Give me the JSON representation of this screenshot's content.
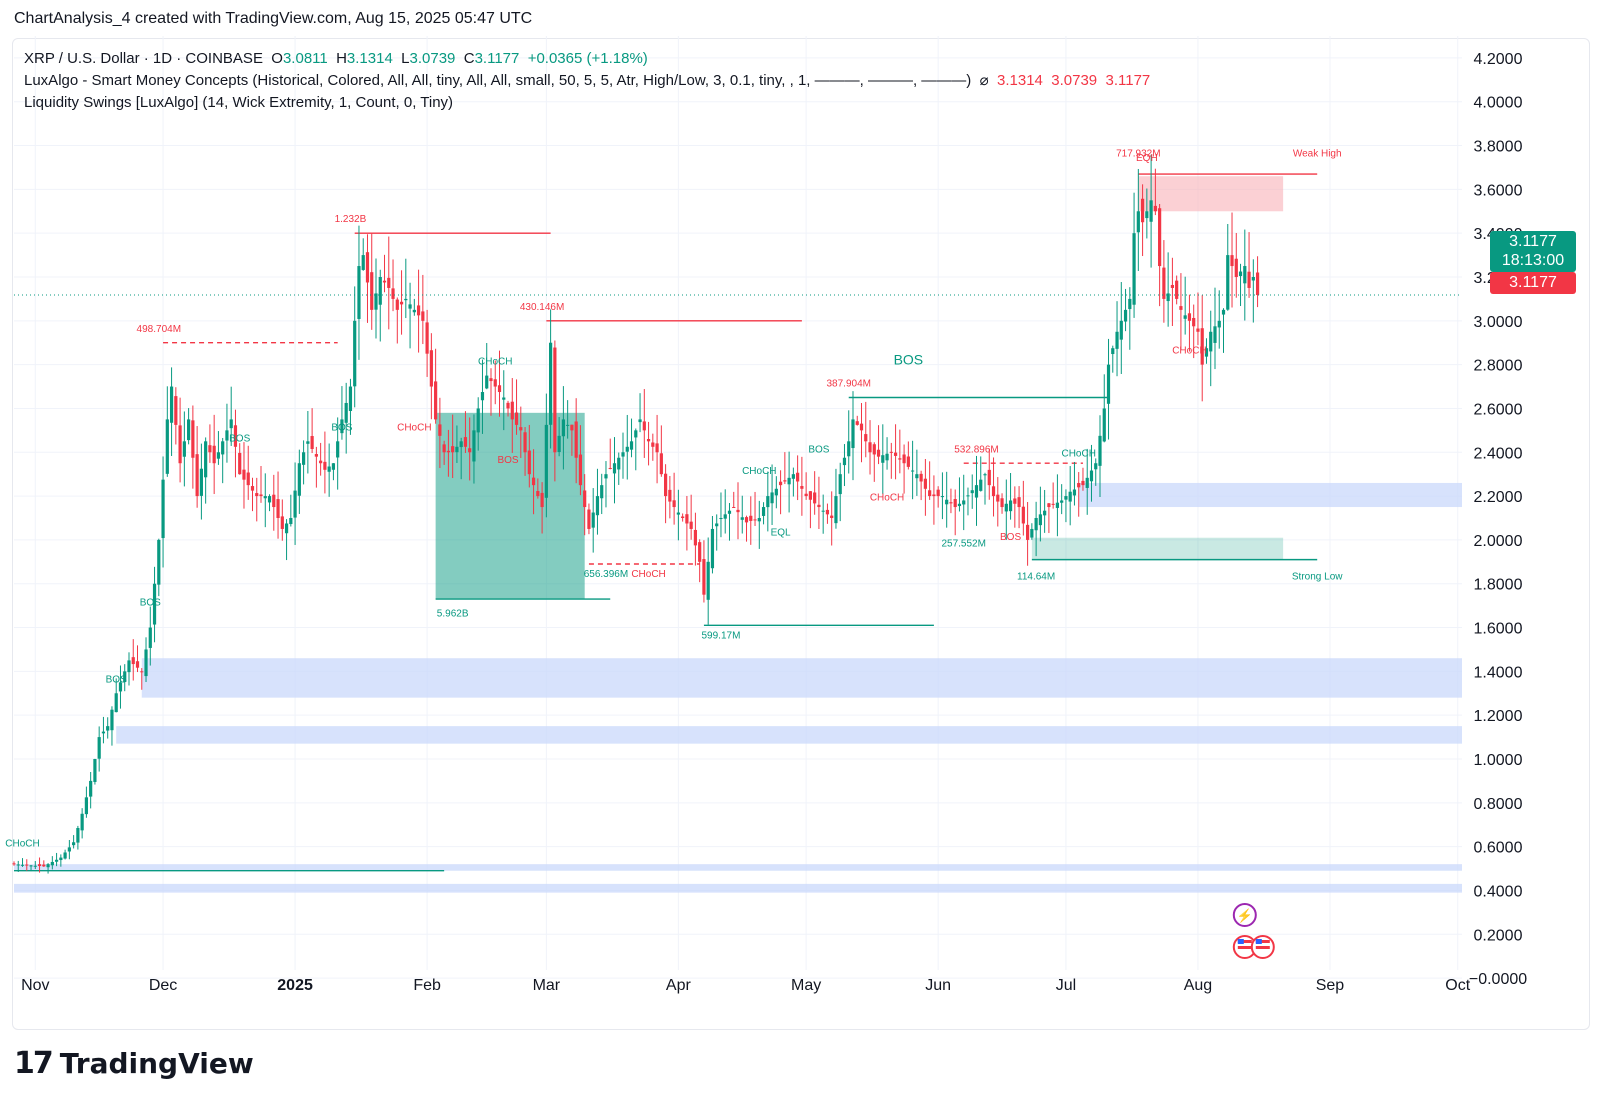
{
  "header": {
    "byline": "ChartAnalysis_4 created with TradingView.com, Aug 15, 2025 05:47 UTC"
  },
  "legend": {
    "symbol": "XRP / U.S. Dollar · 1D · COINBASE",
    "o_label": "O",
    "o_value": "3.0811",
    "h_label": "H",
    "h_value": "3.1314",
    "l_label": "L",
    "l_value": "3.0739",
    "c_label": "C",
    "c_value": "3.1177",
    "change": "+0.0365 (+1.18%)",
    "indicator1": "LuxAlgo - Smart Money Concepts (Historical, Colored, All, All, tiny, All, All, small, 50, 5, 5, Atr, High/Low, 3, 0.1, tiny, , 1, ———, ———, ———)",
    "indicator1_symbol": "⌀",
    "indicator1_values": [
      "3.1314",
      "3.0739",
      "3.1177"
    ],
    "indicator2": "Liquidity Swings [LuxAlgo] (14, Wick Extremity, 1, Count, 0, Tiny)"
  },
  "price_tags": {
    "last": "3.1177",
    "countdown": "18:13:00",
    "close": "3.1177"
  },
  "colors": {
    "up": "#089981",
    "down": "#f23645",
    "zone_blue": "#c9d8fb",
    "zone_green": "#089981",
    "zone_red": "#f7a9b0",
    "grid": "#f0f3fa"
  },
  "brand": {
    "name": "TradingView",
    "mark": "17"
  },
  "chart_data": {
    "type": "candlestick",
    "title": "XRP / U.S. Dollar · 1D · COINBASE",
    "ylim": [
      -0.1,
      4.3
    ],
    "y_ticks": [
      "4.2000",
      "4.0000",
      "3.8000",
      "3.6000",
      "3.4000",
      "3.2000",
      "3.0000",
      "2.8000",
      "2.6000",
      "2.4000",
      "2.2000",
      "2.0000",
      "1.8000",
      "1.6000",
      "1.4000",
      "1.2000",
      "1.0000",
      "0.8000",
      "0.6000",
      "0.4000",
      "0.2000",
      "−0.0000"
    ],
    "x_ticks": [
      "Nov",
      "Dec",
      "2025",
      "Feb",
      "Mar",
      "Apr",
      "May",
      "Jun",
      "Jul",
      "Aug",
      "Sep",
      "Oct"
    ],
    "x_tick_dates": [
      "2024-11-01",
      "2024-12-01",
      "2025-01-01",
      "2025-02-01",
      "2025-03-01",
      "2025-04-01",
      "2025-05-01",
      "2025-06-01",
      "2025-07-01",
      "2025-08-01",
      "2025-09-01",
      "2025-10-01"
    ],
    "x_range": [
      "2024-10-27",
      "2025-10-02"
    ],
    "grid": true,
    "last_price": 3.1177,
    "price_path": [
      [
        "2024-10-27",
        0.52
      ],
      [
        "2024-11-03",
        0.51
      ],
      [
        "2024-11-07",
        0.55
      ],
      [
        "2024-11-10",
        0.62
      ],
      [
        "2024-11-12",
        0.75
      ],
      [
        "2024-11-14",
        0.9
      ],
      [
        "2024-11-16",
        1.1
      ],
      [
        "2024-11-18",
        1.15
      ],
      [
        "2024-11-20",
        1.3
      ],
      [
        "2024-11-23",
        1.45
      ],
      [
        "2024-11-26",
        1.4
      ],
      [
        "2024-11-28",
        1.6
      ],
      [
        "2024-11-30",
        2.0
      ],
      [
        "2024-12-02",
        2.55
      ],
      [
        "2024-12-03",
        2.7
      ],
      [
        "2024-12-05",
        2.35
      ],
      [
        "2024-12-07",
        2.55
      ],
      [
        "2024-12-09",
        2.2
      ],
      [
        "2024-12-11",
        2.45
      ],
      [
        "2024-12-13",
        2.35
      ],
      [
        "2024-12-15",
        2.45
      ],
      [
        "2024-12-17",
        2.55
      ],
      [
        "2024-12-19",
        2.3
      ],
      [
        "2024-12-21",
        2.25
      ],
      [
        "2024-12-23",
        2.2
      ],
      [
        "2024-12-26",
        2.2
      ],
      [
        "2024-12-29",
        2.05
      ],
      [
        "2024-12-31",
        2.1
      ],
      [
        "2025-01-02",
        2.35
      ],
      [
        "2025-01-04",
        2.45
      ],
      [
        "2025-01-06",
        2.38
      ],
      [
        "2025-01-08",
        2.32
      ],
      [
        "2025-01-10",
        2.35
      ],
      [
        "2025-01-12",
        2.55
      ],
      [
        "2025-01-14",
        2.7
      ],
      [
        "2025-01-15",
        3.0
      ],
      [
        "2025-01-16",
        3.25
      ],
      [
        "2025-01-17",
        3.3
      ],
      [
        "2025-01-19",
        3.05
      ],
      [
        "2025-01-21",
        3.2
      ],
      [
        "2025-01-23",
        3.15
      ],
      [
        "2025-01-25",
        3.05
      ],
      [
        "2025-01-27",
        3.1
      ],
      [
        "2025-01-29",
        3.05
      ],
      [
        "2025-01-31",
        3.0
      ],
      [
        "2025-02-02",
        2.7
      ],
      [
        "2025-02-03",
        2.55
      ],
      [
        "2025-02-05",
        2.4
      ],
      [
        "2025-02-07",
        2.4
      ],
      [
        "2025-02-09",
        2.45
      ],
      [
        "2025-02-11",
        2.4
      ],
      [
        "2025-02-13",
        2.6
      ],
      [
        "2025-02-15",
        2.75
      ],
      [
        "2025-02-17",
        2.7
      ],
      [
        "2025-02-19",
        2.65
      ],
      [
        "2025-02-21",
        2.55
      ],
      [
        "2025-02-23",
        2.5
      ],
      [
        "2025-02-25",
        2.3
      ],
      [
        "2025-02-27",
        2.2
      ],
      [
        "2025-02-28",
        2.15
      ],
      [
        "2025-03-02",
        2.9
      ],
      [
        "2025-03-03",
        2.4
      ],
      [
        "2025-03-05",
        2.55
      ],
      [
        "2025-03-07",
        2.5
      ],
      [
        "2025-03-09",
        2.25
      ],
      [
        "2025-03-11",
        2.05
      ],
      [
        "2025-03-13",
        2.2
      ],
      [
        "2025-03-15",
        2.3
      ],
      [
        "2025-03-17",
        2.35
      ],
      [
        "2025-03-19",
        2.4
      ],
      [
        "2025-03-21",
        2.45
      ],
      [
        "2025-03-23",
        2.55
      ],
      [
        "2025-03-25",
        2.45
      ],
      [
        "2025-03-27",
        2.4
      ],
      [
        "2025-03-29",
        2.2
      ],
      [
        "2025-03-31",
        2.15
      ],
      [
        "2025-04-02",
        2.1
      ],
      [
        "2025-04-04",
        2.05
      ],
      [
        "2025-04-06",
        1.9
      ],
      [
        "2025-04-07",
        1.75
      ],
      [
        "2025-04-09",
        2.05
      ],
      [
        "2025-04-11",
        2.1
      ],
      [
        "2025-04-14",
        2.15
      ],
      [
        "2025-04-17",
        2.08
      ],
      [
        "2025-04-20",
        2.1
      ],
      [
        "2025-04-22",
        2.2
      ],
      [
        "2025-04-25",
        2.25
      ],
      [
        "2025-04-28",
        2.3
      ],
      [
        "2025-05-01",
        2.2
      ],
      [
        "2025-05-04",
        2.15
      ],
      [
        "2025-05-07",
        2.1
      ],
      [
        "2025-05-09",
        2.3
      ],
      [
        "2025-05-11",
        2.45
      ],
      [
        "2025-05-12",
        2.55
      ],
      [
        "2025-05-14",
        2.5
      ],
      [
        "2025-05-16",
        2.4
      ],
      [
        "2025-05-18",
        2.38
      ],
      [
        "2025-05-21",
        2.4
      ],
      [
        "2025-05-24",
        2.35
      ],
      [
        "2025-05-27",
        2.3
      ],
      [
        "2025-05-30",
        2.2
      ],
      [
        "2025-06-02",
        2.2
      ],
      [
        "2025-06-05",
        2.15
      ],
      [
        "2025-06-07",
        2.18
      ],
      [
        "2025-06-10",
        2.25
      ],
      [
        "2025-06-12",
        2.3
      ],
      [
        "2025-06-14",
        2.2
      ],
      [
        "2025-06-16",
        2.15
      ],
      [
        "2025-06-18",
        2.18
      ],
      [
        "2025-06-20",
        2.15
      ],
      [
        "2025-06-22",
        2.0
      ],
      [
        "2025-06-24",
        2.1
      ],
      [
        "2025-06-27",
        2.15
      ],
      [
        "2025-06-30",
        2.18
      ],
      [
        "2025-07-02",
        2.22
      ],
      [
        "2025-07-05",
        2.25
      ],
      [
        "2025-07-08",
        2.35
      ],
      [
        "2025-07-10",
        2.6
      ],
      [
        "2025-07-11",
        2.8
      ],
      [
        "2025-07-13",
        2.95
      ],
      [
        "2025-07-14",
        3.0
      ],
      [
        "2025-07-16",
        3.1
      ],
      [
        "2025-07-17",
        3.4
      ],
      [
        "2025-07-18",
        3.5
      ],
      [
        "2025-07-19",
        3.45
      ],
      [
        "2025-07-21",
        3.55
      ],
      [
        "2025-07-22",
        3.5
      ],
      [
        "2025-07-23",
        3.25
      ],
      [
        "2025-07-24",
        3.1
      ],
      [
        "2025-07-26",
        3.15
      ],
      [
        "2025-07-28",
        3.05
      ],
      [
        "2025-07-30",
        3.0
      ],
      [
        "2025-08-01",
        2.95
      ],
      [
        "2025-08-02",
        2.8
      ],
      [
        "2025-08-04",
        2.95
      ],
      [
        "2025-08-06",
        3.0
      ],
      [
        "2025-08-07",
        3.05
      ],
      [
        "2025-08-08",
        3.3
      ],
      [
        "2025-08-10",
        3.2
      ],
      [
        "2025-08-12",
        3.25
      ],
      [
        "2025-08-13",
        3.15
      ],
      [
        "2025-08-14",
        3.2
      ],
      [
        "2025-08-15",
        3.1177
      ]
    ],
    "annotations": [
      {
        "text": "CHoCH",
        "date": "2024-10-29",
        "price": 0.6,
        "color": "up"
      },
      {
        "text": "BOS",
        "date": "2024-11-20",
        "price": 1.35,
        "color": "up"
      },
      {
        "text": "BOS",
        "date": "2024-11-28",
        "price": 1.7,
        "color": "up"
      },
      {
        "text": "498.704M",
        "date": "2024-11-30",
        "price": 2.95,
        "color": "dn"
      },
      {
        "text": "BOS",
        "date": "2024-12-19",
        "price": 2.45,
        "color": "up"
      },
      {
        "text": "BOS",
        "date": "2025-01-12",
        "price": 2.5,
        "color": "up"
      },
      {
        "text": "1.232B",
        "date": "2025-01-14",
        "price": 3.45,
        "color": "dn"
      },
      {
        "text": "CHoCH",
        "date": "2025-01-29",
        "price": 2.5,
        "color": "dn"
      },
      {
        "text": "5.962B",
        "date": "2025-02-07",
        "price": 1.65,
        "color": "up"
      },
      {
        "text": "CHoCH",
        "date": "2025-02-17",
        "price": 2.8,
        "color": "up"
      },
      {
        "text": "BOS",
        "date": "2025-02-20",
        "price": 2.35,
        "color": "dn"
      },
      {
        "text": "430.146M",
        "date": "2025-02-28",
        "price": 3.05,
        "color": "dn"
      },
      {
        "text": "656.396M",
        "date": "2025-03-15",
        "price": 1.83,
        "color": "up"
      },
      {
        "text": "CHoCH",
        "date": "2025-03-25",
        "price": 1.83,
        "color": "dn"
      },
      {
        "text": "599.17M",
        "date": "2025-04-11",
        "price": 1.55,
        "color": "up"
      },
      {
        "text": "CHoCH",
        "date": "2025-04-20",
        "price": 2.3,
        "color": "up"
      },
      {
        "text": "EQL",
        "date": "2025-04-25",
        "price": 2.02,
        "color": "up"
      },
      {
        "text": "BOS",
        "date": "2025-05-04",
        "price": 2.4,
        "color": "up"
      },
      {
        "text": "387.904M",
        "date": "2025-05-11",
        "price": 2.7,
        "color": "dn"
      },
      {
        "text": "BOS",
        "date": "2025-05-25",
        "price": 2.8,
        "color": "up",
        "large": true
      },
      {
        "text": "CHoCH",
        "date": "2025-05-20",
        "price": 2.18,
        "color": "dn"
      },
      {
        "text": "532.896M",
        "date": "2025-06-10",
        "price": 2.4,
        "color": "dn"
      },
      {
        "text": "257.552M",
        "date": "2025-06-07",
        "price": 1.97,
        "color": "up"
      },
      {
        "text": "BOS",
        "date": "2025-06-18",
        "price": 2.0,
        "color": "dn"
      },
      {
        "text": "114.64M",
        "date": "2025-06-24",
        "price": 1.82,
        "color": "up"
      },
      {
        "text": "CHoCH",
        "date": "2025-07-04",
        "price": 2.38,
        "color": "up"
      },
      {
        "text": "717.932M",
        "date": "2025-07-18",
        "price": 3.75,
        "color": "dn"
      },
      {
        "text": "EQH",
        "date": "2025-07-20",
        "price": 3.73,
        "color": "dn"
      },
      {
        "text": "Weak High",
        "date": "2025-08-29",
        "price": 3.75,
        "color": "dn"
      },
      {
        "text": "CHoCH",
        "date": "2025-07-30",
        "price": 2.85,
        "color": "dn"
      },
      {
        "text": "Strong Low",
        "date": "2025-08-29",
        "price": 1.82,
        "color": "up"
      }
    ],
    "zones": [
      {
        "from": "2024-11-26",
        "to": "2025-10-02",
        "low": 1.28,
        "high": 1.46,
        "kind": "blue"
      },
      {
        "from": "2024-11-20",
        "to": "2025-10-02",
        "low": 1.07,
        "high": 1.15,
        "kind": "blue"
      },
      {
        "from": "2024-10-27",
        "to": "2025-10-02",
        "low": 0.49,
        "high": 0.52,
        "kind": "blue"
      },
      {
        "from": "2024-10-27",
        "to": "2025-10-02",
        "low": 0.39,
        "high": 0.43,
        "kind": "blue"
      },
      {
        "from": "2025-07-04",
        "to": "2025-10-02",
        "low": 2.15,
        "high": 2.26,
        "kind": "blue"
      },
      {
        "from": "2025-02-03",
        "to": "2025-03-10",
        "low": 1.73,
        "high": 2.58,
        "kind": "green"
      },
      {
        "from": "2025-06-23",
        "to": "2025-08-21",
        "low": 1.91,
        "high": 2.01,
        "kind": "green_light"
      },
      {
        "from": "2025-07-18",
        "to": "2025-08-21",
        "low": 3.5,
        "high": 3.66,
        "kind": "red_light"
      }
    ],
    "levels": [
      {
        "from": "2025-01-15",
        "to": "2025-03-02",
        "price": 3.4,
        "kind": "dn"
      },
      {
        "from": "2025-03-01",
        "to": "2025-04-30",
        "price": 3.0,
        "kind": "dn"
      },
      {
        "from": "2025-07-18",
        "to": "2025-08-29",
        "price": 3.67,
        "kind": "dn"
      },
      {
        "from": "2025-05-11",
        "to": "2025-07-11",
        "price": 2.65,
        "kind": "up"
      },
      {
        "from": "2025-04-07",
        "to": "2025-05-31",
        "price": 1.61,
        "kind": "up"
      },
      {
        "from": "2025-02-03",
        "to": "2025-03-16",
        "price": 1.73,
        "kind": "up"
      },
      {
        "from": "2025-06-23",
        "to": "2025-08-29",
        "price": 1.91,
        "kind": "up"
      },
      {
        "from": "2024-10-27",
        "to": "2025-02-05",
        "price": 0.49,
        "kind": "up"
      },
      {
        "from": "2024-12-01",
        "to": "2025-01-11",
        "price": 2.9,
        "kind": "dn_dashed"
      },
      {
        "from": "2025-03-11",
        "to": "2025-04-06",
        "price": 1.89,
        "kind": "dn_dashed"
      },
      {
        "from": "2025-06-07",
        "to": "2025-07-05",
        "price": 2.35,
        "kind": "dn_dashed"
      }
    ]
  }
}
